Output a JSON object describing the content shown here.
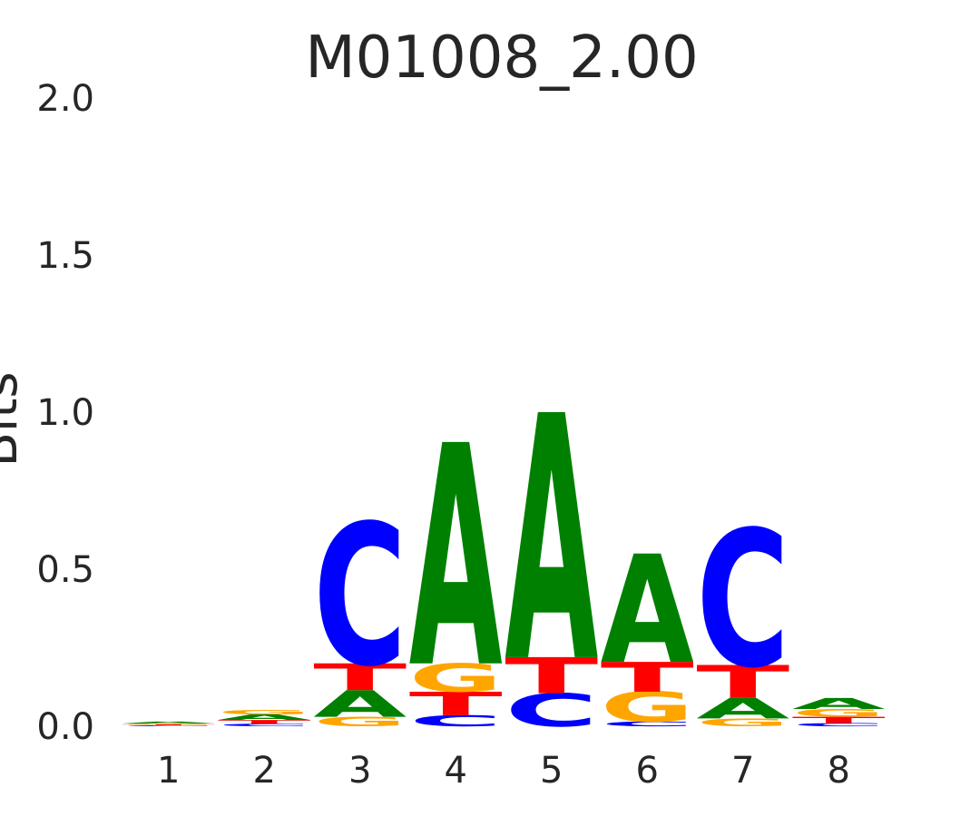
{
  "chart_data": {
    "type": "sequence-logo",
    "title": "M01008_2.00",
    "xlabel": "",
    "ylabel": "Bits",
    "ylim": [
      0,
      2
    ],
    "yticks": [
      "0.0",
      "0.5",
      "1.0",
      "1.5",
      "2.0"
    ],
    "yticks_values": [
      0,
      0.5,
      1.0,
      1.5,
      2.0
    ],
    "positions": [
      "1",
      "2",
      "3",
      "4",
      "5",
      "6",
      "7",
      "8"
    ],
    "grid": false,
    "colors": {
      "A": "#008000",
      "C": "#0000ff",
      "G": "#ffa500",
      "T": "#ff0000"
    },
    "stacks": [
      [
        {
          "base": "C",
          "bits": 0.003
        },
        {
          "base": "T",
          "bits": 0.003
        },
        {
          "base": "G",
          "bits": 0.003
        },
        {
          "base": "A",
          "bits": 0.006
        }
      ],
      [
        {
          "base": "C",
          "bits": 0.008
        },
        {
          "base": "T",
          "bits": 0.012
        },
        {
          "base": "A",
          "bits": 0.018
        },
        {
          "base": "G",
          "bits": 0.015
        }
      ],
      [
        {
          "base": "G",
          "bits": 0.03
        },
        {
          "base": "A",
          "bits": 0.085
        },
        {
          "base": "T",
          "bits": 0.085
        },
        {
          "base": "C",
          "bits": 0.45
        }
      ],
      [
        {
          "base": "C",
          "bits": 0.035
        },
        {
          "base": "T",
          "bits": 0.075
        },
        {
          "base": "G",
          "bits": 0.09
        },
        {
          "base": "A",
          "bits": 0.705
        }
      ],
      [
        {
          "base": "C",
          "bits": 0.105
        },
        {
          "base": "T",
          "bits": 0.115
        },
        {
          "base": "A",
          "bits": 0.78
        }
      ],
      [
        {
          "base": "C",
          "bits": 0.015
        },
        {
          "base": "G",
          "bits": 0.095
        },
        {
          "base": "T",
          "bits": 0.095
        },
        {
          "base": "A",
          "bits": 0.345
        }
      ],
      [
        {
          "base": "G",
          "bits": 0.025
        },
        {
          "base": "A",
          "bits": 0.065
        },
        {
          "base": "T",
          "bits": 0.105
        },
        {
          "base": "C",
          "bits": 0.435
        }
      ],
      [
        {
          "base": "C",
          "bits": 0.01
        },
        {
          "base": "T",
          "bits": 0.02
        },
        {
          "base": "G",
          "bits": 0.025
        },
        {
          "base": "A",
          "bits": 0.035
        }
      ]
    ]
  }
}
